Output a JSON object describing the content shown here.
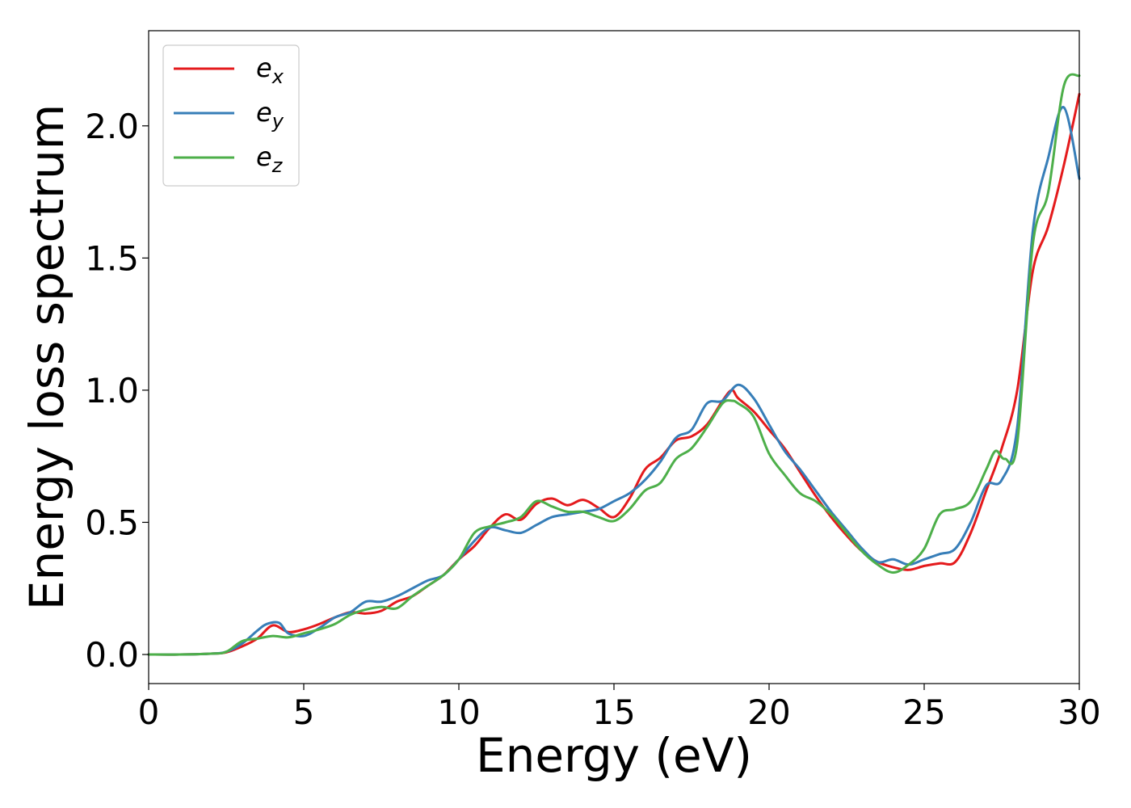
{
  "chart_data": {
    "type": "line",
    "title": "",
    "xlabel": "Energy (eV)",
    "ylabel": "Energy loss spectrum",
    "xlim": [
      0,
      30
    ],
    "ylim": [
      -0.11,
      2.36
    ],
    "xticks": [
      0,
      5,
      10,
      15,
      20,
      25,
      30
    ],
    "xtick_labels": [
      "0",
      "5",
      "10",
      "15",
      "20",
      "25",
      "30"
    ],
    "yticks": [
      0.0,
      0.5,
      1.0,
      1.5,
      2.0
    ],
    "ytick_labels": [
      "0.0",
      "0.5",
      "1.0",
      "1.5",
      "2.0"
    ],
    "grid": false,
    "legend_position": "top-left",
    "series": [
      {
        "name": "e_x",
        "legend_base": "e",
        "legend_sub": "x",
        "color": "#e41a1c",
        "x": [
          0,
          1,
          2,
          2.5,
          3,
          3.5,
          4,
          4.5,
          5,
          5.5,
          6,
          6.5,
          7,
          7.5,
          8,
          8.5,
          9,
          9.5,
          10,
          10.5,
          11,
          11.5,
          12,
          12.5,
          13,
          13.5,
          14,
          14.5,
          15,
          15.5,
          16,
          16.5,
          17,
          17.5,
          18,
          18.5,
          18.8,
          19,
          19.5,
          20,
          20.5,
          21,
          21.5,
          22,
          22.5,
          23,
          23.5,
          24,
          24.5,
          25,
          25.5,
          26,
          26.5,
          27,
          27.5,
          28,
          28.5,
          29,
          29.5,
          30
        ],
        "y": [
          0,
          0,
          0.003,
          0.008,
          0.03,
          0.06,
          0.11,
          0.085,
          0.095,
          0.115,
          0.14,
          0.16,
          0.155,
          0.165,
          0.2,
          0.22,
          0.26,
          0.3,
          0.36,
          0.41,
          0.48,
          0.53,
          0.51,
          0.57,
          0.59,
          0.565,
          0.585,
          0.555,
          0.52,
          0.59,
          0.7,
          0.745,
          0.81,
          0.825,
          0.87,
          0.96,
          1.0,
          0.97,
          0.92,
          0.85,
          0.78,
          0.69,
          0.6,
          0.52,
          0.45,
          0.39,
          0.35,
          0.33,
          0.32,
          0.335,
          0.345,
          0.35,
          0.46,
          0.62,
          0.78,
          1.0,
          1.45,
          1.62,
          1.85,
          2.12
        ]
      },
      {
        "name": "e_y",
        "legend_base": "e",
        "legend_sub": "y",
        "color": "#377eb8",
        "x": [
          0,
          1,
          2,
          2.5,
          3,
          3.5,
          3.8,
          4.2,
          4.5,
          5,
          5.5,
          6,
          6.5,
          7,
          7.5,
          8,
          8.5,
          9,
          9.5,
          10,
          10.5,
          11,
          11.5,
          12,
          12.5,
          13,
          13.5,
          14,
          14.5,
          15,
          15.5,
          16,
          16.5,
          17,
          17.5,
          18,
          18.5,
          19,
          19.5,
          20,
          20.5,
          21,
          21.5,
          22,
          22.5,
          23,
          23.5,
          24,
          24.5,
          25,
          25.5,
          26,
          26.5,
          27,
          27.5,
          28,
          28.5,
          29,
          29.5,
          30
        ],
        "y": [
          0,
          0,
          0.003,
          0.01,
          0.04,
          0.09,
          0.115,
          0.12,
          0.08,
          0.07,
          0.1,
          0.14,
          0.16,
          0.2,
          0.2,
          0.22,
          0.25,
          0.28,
          0.3,
          0.36,
          0.43,
          0.48,
          0.47,
          0.46,
          0.49,
          0.52,
          0.53,
          0.54,
          0.55,
          0.58,
          0.61,
          0.66,
          0.73,
          0.82,
          0.85,
          0.95,
          0.96,
          1.02,
          0.97,
          0.87,
          0.77,
          0.7,
          0.62,
          0.54,
          0.47,
          0.4,
          0.35,
          0.36,
          0.34,
          0.36,
          0.38,
          0.4,
          0.5,
          0.64,
          0.66,
          0.86,
          1.6,
          1.88,
          2.07,
          1.8
        ]
      },
      {
        "name": "e_z",
        "legend_base": "e",
        "legend_sub": "z",
        "color": "#4daf4a",
        "x": [
          0,
          1,
          2,
          2.5,
          3,
          3.5,
          4,
          4.5,
          5,
          5.5,
          6,
          6.5,
          7,
          7.5,
          8,
          8.5,
          9,
          9.5,
          10,
          10.5,
          11,
          11.5,
          12,
          12.5,
          13,
          13.5,
          14,
          14.5,
          15,
          15.5,
          16,
          16.5,
          17,
          17.5,
          18,
          18.5,
          18.8,
          19,
          19.5,
          20,
          20.5,
          21,
          21.5,
          22,
          22.5,
          23,
          23.5,
          24,
          24.5,
          25,
          25.5,
          26,
          26.5,
          27,
          27.3,
          27.6,
          28,
          28.5,
          29,
          29.5,
          30
        ],
        "y": [
          0,
          0,
          0.003,
          0.01,
          0.05,
          0.06,
          0.07,
          0.065,
          0.08,
          0.095,
          0.115,
          0.15,
          0.17,
          0.18,
          0.175,
          0.22,
          0.26,
          0.3,
          0.36,
          0.46,
          0.485,
          0.5,
          0.52,
          0.58,
          0.56,
          0.54,
          0.54,
          0.52,
          0.505,
          0.55,
          0.62,
          0.65,
          0.74,
          0.78,
          0.86,
          0.95,
          0.96,
          0.95,
          0.9,
          0.76,
          0.68,
          0.61,
          0.58,
          0.53,
          0.46,
          0.39,
          0.34,
          0.31,
          0.34,
          0.4,
          0.53,
          0.55,
          0.58,
          0.7,
          0.77,
          0.74,
          0.8,
          1.55,
          1.75,
          2.15,
          2.19
        ]
      }
    ]
  }
}
